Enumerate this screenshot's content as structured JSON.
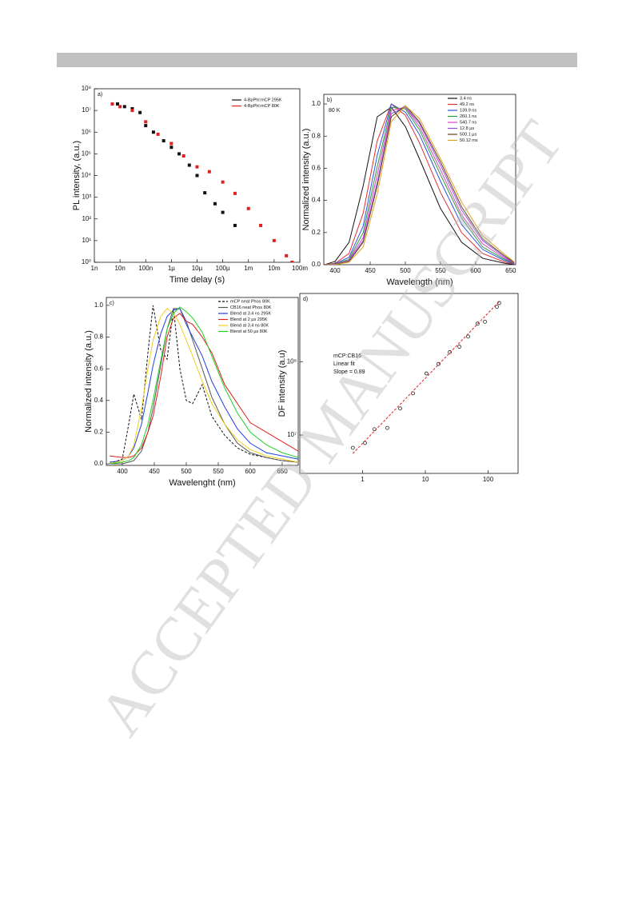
{
  "watermark": "ACCEPTED MANUSCRIPT",
  "chart_data": [
    {
      "type": "scatter",
      "label": "a)",
      "x_label": "Time delay (s)",
      "y_label": "PL intensity, (a.u.)",
      "xlog": true,
      "ylog": true,
      "marker": "square",
      "legend": "upper right",
      "xlim": [
        1e-09,
        0.1
      ],
      "ylim": [
        1,
        100000000
      ],
      "xticks": [
        {
          "value": 1e-09,
          "label": "1n"
        },
        {
          "value": 1e-08,
          "label": "10n"
        },
        {
          "value": 1e-07,
          "label": "100n"
        },
        {
          "value": 1e-06,
          "label": "1µ"
        },
        {
          "value": 1e-05,
          "label": "10µ"
        },
        {
          "value": 0.0001,
          "label": "100µ"
        },
        {
          "value": 0.001,
          "label": "1m"
        },
        {
          "value": 0.01,
          "label": "10m"
        },
        {
          "value": 0.1,
          "label": "100m"
        }
      ],
      "yticks": [
        {
          "value": 1,
          "label": "10⁰"
        },
        {
          "value": 10,
          "label": "10¹"
        },
        {
          "value": 100,
          "label": "10²"
        },
        {
          "value": 1000,
          "label": "10³"
        },
        {
          "value": 10000,
          "label": "10⁴"
        },
        {
          "value": 100000,
          "label": "10⁵"
        },
        {
          "value": 1000000,
          "label": "10⁶"
        },
        {
          "value": 10000000,
          "label": "10⁷"
        },
        {
          "value": 100000000,
          "label": "10⁸"
        }
      ],
      "series": [
        {
          "name": "4-BpPhl:mCP 295K",
          "color": "#111111",
          "x": [
            8e-09,
            1.5e-08,
            3e-08,
            6e-08,
            1e-07,
            2e-07,
            5e-07,
            1e-06,
            2e-06,
            5e-06,
            1e-05,
            2e-05,
            5e-05,
            0.0001,
            0.0003
          ],
          "values": [
            20000000,
            15000000,
            12000000,
            8000000,
            2000000,
            1000000,
            400000,
            200000,
            100000,
            30000,
            10000,
            1600,
            500,
            200,
            50
          ]
        },
        {
          "name": "4-BpPhl:mCP 80K",
          "color": "#e02020",
          "x": [
            5e-09,
            1e-08,
            3e-08,
            1e-07,
            3e-07,
            1e-06,
            3e-06,
            1e-05,
            3e-05,
            0.0001,
            0.0003,
            0.001,
            0.003,
            0.01,
            0.03,
            0.05
          ],
          "values": [
            20000000,
            15000000,
            10000000,
            3000000,
            800000,
            300000,
            80000,
            25000,
            15000,
            5000,
            1500,
            300,
            50,
            10,
            2,
            1
          ]
        }
      ]
    },
    {
      "type": "line",
      "label": "b)",
      "annotation": "80 K",
      "x_label": "Wavelength (nm)",
      "y_label": "Normalized intensity (a.u.)",
      "legend": "upper right",
      "xlim": [
        384,
        657
      ],
      "ylim": [
        0,
        1.06
      ],
      "xticks": [
        400,
        450,
        500,
        550,
        600,
        650
      ],
      "yticks": [
        {
          "value": 0,
          "label": "0.0"
        },
        0.2,
        0.4,
        0.6,
        0.8,
        {
          "value": 1,
          "label": "1.0"
        }
      ],
      "x": [
        385,
        400,
        420,
        440,
        460,
        480,
        500,
        520,
        550,
        580,
        610,
        640,
        655
      ],
      "series": [
        {
          "name": "3.4 ns",
          "color": "#111111",
          "values": [
            0,
            0.02,
            0.14,
            0.49,
            0.92,
            0.98,
            0.86,
            0.66,
            0.35,
            0.14,
            0.04,
            0.01,
            0
          ]
        },
        {
          "name": "49.2 ns",
          "color": "#e03030",
          "values": [
            0,
            0.008,
            0.07,
            0.32,
            0.77,
            1,
            0.93,
            0.76,
            0.45,
            0.2,
            0.07,
            0.018,
            0.003
          ]
        },
        {
          "name": "139.9 ns",
          "color": "#3050e0",
          "values": [
            0,
            0.005,
            0.046,
            0.24,
            0.68,
            1,
            0.95,
            0.81,
            0.52,
            0.25,
            0.095,
            0.028,
            0.005
          ]
        },
        {
          "name": "260.1 ns",
          "color": "#20a040",
          "values": [
            0,
            0.003,
            0.034,
            0.2,
            0.61,
            0.98,
            0.97,
            0.84,
            0.56,
            0.29,
            0.11,
            0.036,
            0.007
          ]
        },
        {
          "name": "540.7 ns",
          "color": "#e040c0",
          "values": [
            0,
            0.002,
            0.027,
            0.17,
            0.56,
            0.96,
            0.98,
            0.86,
            0.59,
            0.31,
            0.13,
            0.043,
            0.009
          ]
        },
        {
          "name": "12.8 µs",
          "color": "#9050e0",
          "values": [
            0,
            0.001,
            0.022,
            0.15,
            0.51,
            0.94,
            0.98,
            0.88,
            0.62,
            0.34,
            0.15,
            0.051,
            0.011
          ]
        },
        {
          "name": "500.1 µs",
          "color": "#604020",
          "values": [
            0,
            0.001,
            0.02,
            0.14,
            0.49,
            0.92,
            0.99,
            0.89,
            0.64,
            0.36,
            0.16,
            0.059,
            0.013
          ]
        },
        {
          "name": "50.12 ms",
          "color": "#e0a020",
          "values": [
            0,
            0,
            0.016,
            0.11,
            0.44,
            0.89,
            0.99,
            0.91,
            0.66,
            0.39,
            0.18,
            0.069,
            0.017
          ]
        }
      ]
    },
    {
      "type": "line",
      "label": "c)",
      "x_label": "Wavelenght (nm)",
      "y_label": "Normalized intensity (a.u.)",
      "legend": "upper right",
      "xlim": [
        375,
        675
      ],
      "ylim": [
        -0.01,
        1.05
      ],
      "xticks": [
        400,
        450,
        500,
        550,
        600,
        650
      ],
      "yticks": [
        {
          "value": 0,
          "label": "0.0"
        },
        0.2,
        0.4,
        0.6,
        0.8,
        {
          "value": 1,
          "label": "1.0"
        }
      ],
      "x": [
        380,
        400,
        410,
        418,
        430,
        440,
        448,
        460,
        470,
        480,
        490,
        500,
        510,
        525,
        540,
        560,
        580,
        600,
        625,
        650,
        675
      ],
      "series": [
        {
          "name": "mCP neat Phos 80K",
          "color": "#111111",
          "line_style": "dashed",
          "values": [
            0,
            0.03,
            0.25,
            0.44,
            0.28,
            0.7,
            1,
            0.72,
            0.66,
            0.98,
            0.6,
            0.4,
            0.38,
            0.5,
            0.3,
            0.18,
            0.1,
            0.06,
            0.04,
            0.02,
            0.01
          ]
        },
        {
          "name": "CB16 neat Phos 80K",
          "color": "#555555",
          "values": [
            0,
            0,
            0.01,
            0.02,
            0.08,
            0.2,
            0.35,
            0.62,
            0.85,
            0.98,
            0.98,
            0.9,
            0.78,
            0.6,
            0.42,
            0.25,
            0.13,
            0.07,
            0.04,
            0.02,
            0.01
          ]
        },
        {
          "name": "Blend at 3.4 ns 295K",
          "color": "#2040e0",
          "values": [
            0.01,
            0.02,
            0.05,
            0.1,
            0.25,
            0.45,
            0.62,
            0.82,
            0.93,
            0.97,
            0.98,
            0.88,
            0.8,
            0.68,
            0.52,
            0.36,
            0.22,
            0.13,
            0.07,
            0.05,
            0.03
          ]
        },
        {
          "name": "Blend at 2 µs 295K",
          "color": "#e02020",
          "values": [
            0.05,
            0.04,
            0.04,
            0.05,
            0.1,
            0.2,
            0.3,
            0.55,
            0.8,
            0.92,
            0.95,
            0.9,
            0.88,
            0.8,
            0.7,
            0.5,
            0.38,
            0.26,
            0.2,
            0.14,
            0.08
          ]
        },
        {
          "name": "Blend at 3.4 ns 80K",
          "color": "#f0d020",
          "values": [
            0,
            0.02,
            0.05,
            0.12,
            0.35,
            0.6,
            0.78,
            0.93,
            0.98,
            0.95,
            0.88,
            0.78,
            0.68,
            0.52,
            0.38,
            0.25,
            0.15,
            0.09,
            0.05,
            0.03,
            0.01
          ]
        },
        {
          "name": "Blend at 50 µs 80K",
          "color": "#20d020",
          "values": [
            0,
            0.01,
            0.02,
            0.04,
            0.12,
            0.25,
            0.4,
            0.65,
            0.85,
            0.95,
            0.99,
            0.96,
            0.92,
            0.83,
            0.68,
            0.48,
            0.32,
            0.2,
            0.12,
            0.07,
            0.04
          ]
        }
      ]
    },
    {
      "type": "scatter",
      "label": "d)",
      "annotations": [
        "mCP:CB16",
        "Linear fit",
        "Slope = 0.89"
      ],
      "y_label": "DF intensity (a.u)",
      "xlog": true,
      "ylog": true,
      "marker": "circle",
      "xlim": [
        0.1,
        300
      ],
      "ylim": [
        3000000,
        850000000
      ],
      "xticks": [
        1,
        10,
        100
      ],
      "yticks": [
        {
          "value": 10000000,
          "label": "10⁷"
        },
        {
          "value": 100000000,
          "label": "10⁸"
        }
      ],
      "series": [
        {
          "color": "#222222",
          "x": [
            0.7,
            1.09,
            1.55,
            2.48,
            3.97,
            6.35,
            10.4,
            16.2,
            24.5,
            34.8,
            48,
            68,
            89,
            138,
            150
          ],
          "values": [
            6700000,
            7800000,
            12000000,
            12500000,
            23000000,
            37000000,
            69000000,
            93000000,
            135000000,
            160000000,
            220000000,
            330000000,
            350000000,
            560000000,
            630000000
          ]
        },
        {
          "color": "#e02020",
          "line_style": "dashed",
          "x": [
            0.7,
            150
          ],
          "values": [
            5600000,
            660000000
          ]
        }
      ]
    }
  ]
}
